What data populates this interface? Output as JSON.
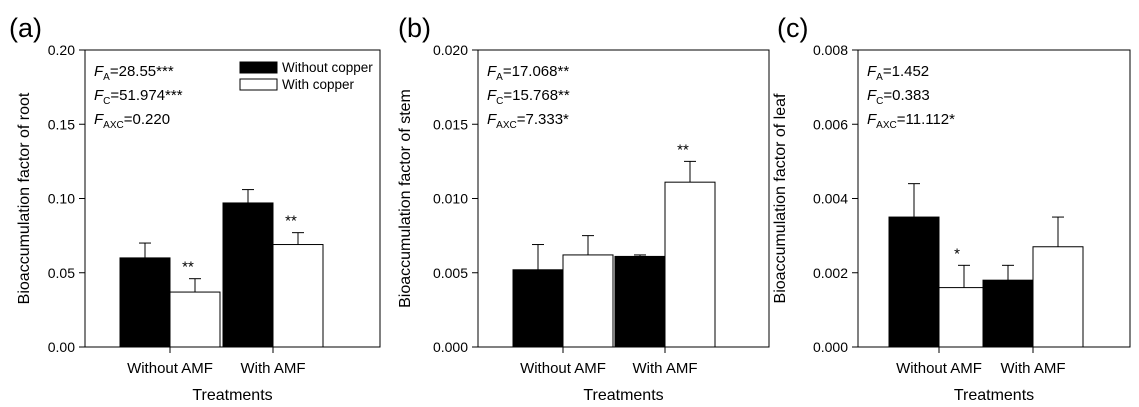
{
  "chart_data": [
    {
      "panel": "(a)",
      "type": "bar",
      "categories": [
        "Without AMF",
        "With AMF"
      ],
      "series": [
        {
          "name": "Without copper",
          "values": [
            0.06,
            0.097
          ],
          "errors": [
            0.01,
            0.009
          ],
          "color": "#000000"
        },
        {
          "name": "With copper",
          "values": [
            0.037,
            0.069
          ],
          "errors": [
            0.009,
            0.008
          ],
          "color": "#ffffff"
        }
      ],
      "significance": [
        {
          "category": 0,
          "label": "**"
        },
        {
          "category": 1,
          "label": "**"
        }
      ],
      "xlabel": "Treatments",
      "ylabel": "Bioaccumulation factor of root",
      "ylim": [
        0,
        0.2
      ],
      "yticks": [
        "0.00",
        "0.05",
        "0.10",
        "0.15",
        "0.20"
      ],
      "stats": [
        {
          "F": "F",
          "sub": "A",
          "value": "=28.55***"
        },
        {
          "F": "F",
          "sub": "C",
          "value": "=51.974***"
        },
        {
          "F": "F",
          "sub": "AXC",
          "value": "=0.220"
        }
      ],
      "legend": {
        "position": "top-right",
        "entries": [
          "Without copper",
          "With copper"
        ]
      }
    },
    {
      "panel": "(b)",
      "type": "bar",
      "categories": [
        "Without AMF",
        "With AMF"
      ],
      "series": [
        {
          "name": "Without copper",
          "values": [
            0.0052,
            0.0061
          ],
          "errors": [
            0.0017,
            0.0001
          ],
          "color": "#000000"
        },
        {
          "name": "With copper",
          "values": [
            0.0062,
            0.0111
          ],
          "errors": [
            0.0013,
            0.0014
          ],
          "color": "#ffffff"
        }
      ],
      "significance": [
        {
          "category": 1,
          "label": "**"
        }
      ],
      "xlabel": "Treatments",
      "ylabel": "Bioaccumulation factor of stem",
      "ylim": [
        0,
        0.02
      ],
      "yticks": [
        "0.000",
        "0.005",
        "0.010",
        "0.015",
        "0.020"
      ],
      "stats": [
        {
          "F": "F",
          "sub": "A",
          "value": "=17.068**"
        },
        {
          "F": "F",
          "sub": "C",
          "value": "=15.768**"
        },
        {
          "F": "F",
          "sub": "AXC",
          "value": "=7.333*"
        }
      ]
    },
    {
      "panel": "(c)",
      "type": "bar",
      "categories": [
        "Without AMF",
        "With AMF"
      ],
      "series": [
        {
          "name": "Without copper",
          "values": [
            0.0035,
            0.0018
          ],
          "errors": [
            0.0009,
            0.0004
          ],
          "color": "#000000"
        },
        {
          "name": "With copper",
          "values": [
            0.0016,
            0.0027
          ],
          "errors": [
            0.0006,
            0.0008
          ],
          "color": "#ffffff"
        }
      ],
      "significance": [
        {
          "category": 0,
          "label": "*"
        }
      ],
      "xlabel": "Treatments",
      "ylabel": "Bioaccumulation factor of leaf",
      "ylim": [
        0,
        0.008
      ],
      "yticks": [
        "0.000",
        "0.002",
        "0.004",
        "0.006",
        "0.008"
      ],
      "stats": [
        {
          "F": "F",
          "sub": "A",
          "value": "=1.452"
        },
        {
          "F": "F",
          "sub": "C",
          "value": "=0.383"
        },
        {
          "F": "F",
          "sub": "AXC",
          "value": "=11.112*"
        }
      ]
    }
  ]
}
